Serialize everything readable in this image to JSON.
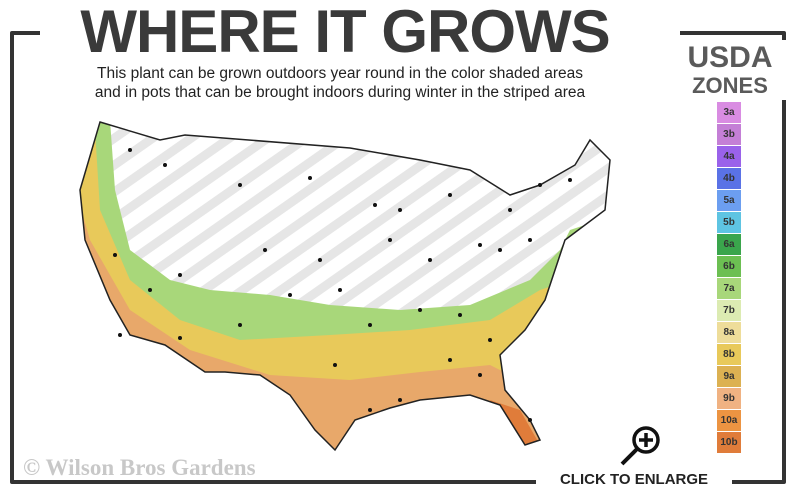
{
  "header": {
    "title": "WHERE IT GROWS",
    "subtitle_line1": "This plant can be grown outdoors year round in the color shaded areas",
    "subtitle_line2": "and in pots that can be brought indoors during winter in the striped area"
  },
  "legend": {
    "title_line1": "USDA",
    "title_line2": "ZONES",
    "zones": [
      {
        "label": "3a",
        "color": "#d98ce2"
      },
      {
        "label": "3b",
        "color": "#c47fd6"
      },
      {
        "label": "4a",
        "color": "#9a62ea"
      },
      {
        "label": "4b",
        "color": "#5a72e6"
      },
      {
        "label": "5a",
        "color": "#6c9ef0"
      },
      {
        "label": "5b",
        "color": "#5ec4e2"
      },
      {
        "label": "6a",
        "color": "#3aa54c"
      },
      {
        "label": "6b",
        "color": "#6cbf52"
      },
      {
        "label": "7a",
        "color": "#a8d77a"
      },
      {
        "label": "7b",
        "color": "#dcebb2"
      },
      {
        "label": "8a",
        "color": "#eedd9a"
      },
      {
        "label": "8b",
        "color": "#e8c95a"
      },
      {
        "label": "9a",
        "color": "#dcb152"
      },
      {
        "label": "9b",
        "color": "#f0b282"
      },
      {
        "label": "10a",
        "color": "#ec9442"
      },
      {
        "label": "10b",
        "color": "#e07c3a"
      }
    ]
  },
  "footer": {
    "watermark": "© Wilson Bros Gardens",
    "enlarge_label": "CLICK TO ENLARGE"
  },
  "icons": {
    "enlarge": "magnifier-plus-icon"
  }
}
